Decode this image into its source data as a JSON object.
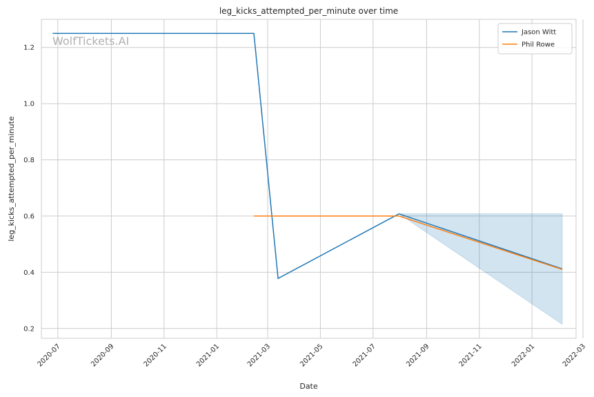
{
  "chart_data": {
    "type": "line",
    "title": "leg_kicks_attempted_per_minute over time",
    "xlabel": "Date",
    "ylabel": "leg_kicks_attempted_per_minute",
    "watermark": "WolfTickets.AI",
    "xlim": [
      "2020-06-12",
      "2022-02-21"
    ],
    "ylim": [
      0.165,
      1.3
    ],
    "x_ticks": [
      "2020-07",
      "2020-09",
      "2020-11",
      "2021-01",
      "2021-03",
      "2021-05",
      "2021-07",
      "2021-09",
      "2021-11",
      "2022-01",
      "2022-03"
    ],
    "y_ticks": [
      0.2,
      0.4,
      0.6,
      0.8,
      1.0,
      1.2
    ],
    "y_tick_labels": [
      "0.2",
      "0.4",
      "0.6",
      "0.8",
      "1.0",
      "1.2"
    ],
    "grid": true,
    "legend_position": "top-right",
    "series": [
      {
        "name": "Jason Witt",
        "color": "#1f77b4",
        "x": [
          "2020-06-25",
          "2021-02-13",
          "2021-03-13",
          "2021-07-31",
          "2022-02-05"
        ],
        "values": [
          1.25,
          1.25,
          0.378,
          0.608,
          0.412
        ],
        "band": {
          "x": [
            "2021-07-31",
            "2022-02-05"
          ],
          "lower": [
            0.608,
            0.215
          ],
          "upper": [
            0.608,
            0.608
          ],
          "color": "#1f77b4"
        }
      },
      {
        "name": "Phil Rowe",
        "color": "#ff7f0e",
        "x": [
          "2021-02-13",
          "2021-07-31",
          "2022-02-05"
        ],
        "values": [
          0.6,
          0.6,
          0.41
        ]
      }
    ]
  }
}
